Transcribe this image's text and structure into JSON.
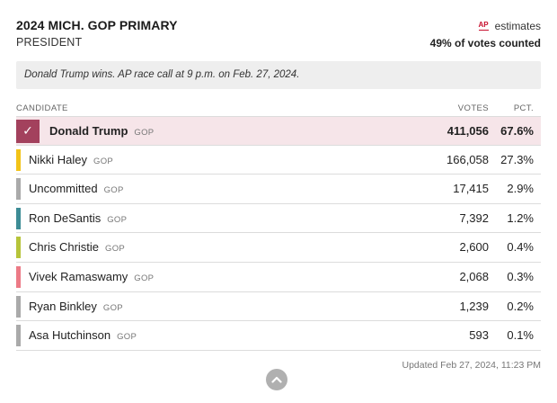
{
  "header": {
    "title": "2024 MICH. GOP PRIMARY",
    "subtitle": "PRESIDENT",
    "source_logo": "AP",
    "estimates_label": "estimates",
    "votes_counted": "49% of votes counted"
  },
  "banner": {
    "text": "Donald Trump wins. AP race call at 9 p.m. on Feb. 27, 2024."
  },
  "table": {
    "headers": {
      "candidate": "CANDIDATE",
      "votes": "VOTES",
      "pct": "PCT."
    },
    "rows": [
      {
        "name": "Donald Trump",
        "party": "GOP",
        "votes": "411,056",
        "pct": "67.6%",
        "color": "#a3415d",
        "winner": true
      },
      {
        "name": "Nikki Haley",
        "party": "GOP",
        "votes": "166,058",
        "pct": "27.3%",
        "color": "#f2c318",
        "winner": false
      },
      {
        "name": "Uncommitted",
        "party": "GOP",
        "votes": "17,415",
        "pct": "2.9%",
        "color": "#aaaaaa",
        "winner": false
      },
      {
        "name": "Ron DeSantis",
        "party": "GOP",
        "votes": "7,392",
        "pct": "1.2%",
        "color": "#3d8c95",
        "winner": false
      },
      {
        "name": "Chris Christie",
        "party": "GOP",
        "votes": "2,600",
        "pct": "0.4%",
        "color": "#b6c43a",
        "winner": false
      },
      {
        "name": "Vivek Ramaswamy",
        "party": "GOP",
        "votes": "2,068",
        "pct": "0.3%",
        "color": "#ec7a86",
        "winner": false
      },
      {
        "name": "Ryan Binkley",
        "party": "GOP",
        "votes": "1,239",
        "pct": "0.2%",
        "color": "#aaaaaa",
        "winner": false
      },
      {
        "name": "Asa Hutchinson",
        "party": "GOP",
        "votes": "593",
        "pct": "0.1%",
        "color": "#aaaaaa",
        "winner": false
      }
    ]
  },
  "footer": {
    "updated": "Updated Feb 27, 2024, 11:23 PM",
    "collapse_icon": "chevron-up-icon"
  }
}
